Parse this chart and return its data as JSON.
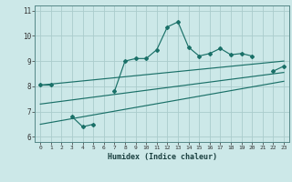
{
  "title": "",
  "xlabel": "Humidex (Indice chaleur)",
  "ylabel": "",
  "background_color": "#cce8e8",
  "grid_color": "#aacccc",
  "line_color": "#1a7068",
  "x_humidex": [
    0,
    1,
    2,
    3,
    4,
    5,
    6,
    7,
    8,
    9,
    10,
    11,
    12,
    13,
    14,
    15,
    16,
    17,
    18,
    19,
    20,
    21,
    22,
    23
  ],
  "y_main": [
    8.05,
    8.05,
    null,
    6.8,
    6.4,
    6.5,
    null,
    7.8,
    9.0,
    9.1,
    9.1,
    9.45,
    10.35,
    10.55,
    9.55,
    9.2,
    9.3,
    9.5,
    9.25,
    9.3,
    9.2,
    null,
    8.6,
    8.8
  ],
  "y_line1_x": [
    0,
    23
  ],
  "y_line1_y": [
    8.05,
    9.0
  ],
  "y_line2_x": [
    0,
    23
  ],
  "y_line2_y": [
    7.3,
    8.55
  ],
  "y_line3_x": [
    0,
    23
  ],
  "y_line3_y": [
    6.5,
    8.2
  ],
  "xlim": [
    -0.5,
    23.5
  ],
  "ylim": [
    5.8,
    11.2
  ],
  "yticks": [
    6,
    7,
    8,
    9,
    10,
    11
  ],
  "xticks": [
    0,
    1,
    2,
    3,
    4,
    5,
    6,
    7,
    8,
    9,
    10,
    11,
    12,
    13,
    14,
    15,
    16,
    17,
    18,
    19,
    20,
    21,
    22,
    23
  ]
}
